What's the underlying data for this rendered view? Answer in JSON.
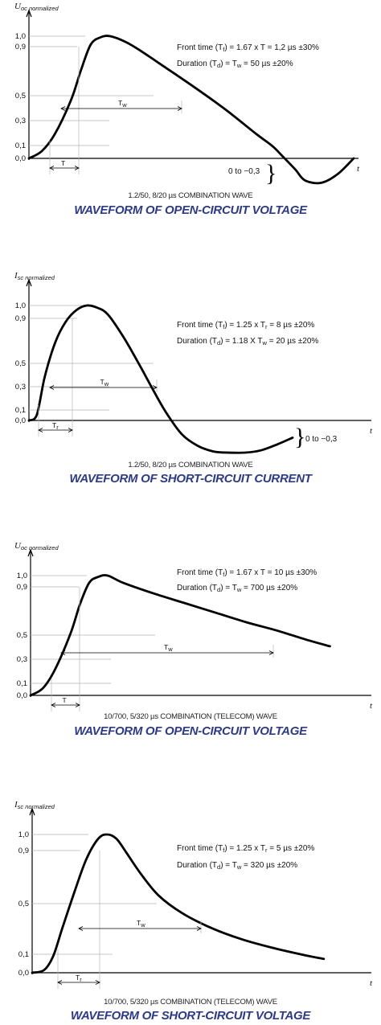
{
  "chart_data": [
    {
      "type": "line",
      "ylabel": "U",
      "ylabel_sub": "oc normalized",
      "xlabel": "t",
      "yticks": [
        "1,0",
        "0,9",
        "0,5",
        "0,3",
        "0,1",
        "0,0"
      ],
      "notes": [
        {
          "parts": [
            "Front time (T",
            "f",
            ") =  1.67 x T  = 1,2 µs ±30%"
          ]
        },
        {
          "parts": [
            "Duration (T",
            "d",
            ") =     T",
            "w",
            "     = 50 µs ±20%"
          ]
        }
      ],
      "dims": {
        "short": "T",
        "long": "T",
        "long_sub": "w"
      },
      "undershoot_label": "0 to −0,3",
      "caption": "1.2/50, 8/20 µs COMBINATION WAVE",
      "title": "WAVEFORM OF OPEN-CIRCUIT VOLTAGE",
      "series": [
        {
          "x": [
            0,
            0.04,
            0.08,
            0.13,
            0.16,
            0.19,
            0.22,
            0.25,
            0.3,
            0.35,
            0.4,
            0.5,
            0.6,
            0.7,
            0.75,
            0.78,
            0.82,
            0.85,
            0.9,
            0.95,
            1.0
          ],
          "y": [
            0.0,
            0.06,
            0.2,
            0.48,
            0.72,
            0.93,
            0.99,
            1.0,
            0.95,
            0.87,
            0.78,
            0.6,
            0.41,
            0.2,
            0.1,
            0.02,
            -0.09,
            -0.18,
            -0.2,
            -0.13,
            -0.0
          ]
        }
      ]
    },
    {
      "type": "line",
      "ylabel": "I",
      "ylabel_sub": "sc normalized",
      "xlabel": "t",
      "yticks": [
        "1,0",
        "0,9",
        "0,5",
        "0,3",
        "0,1",
        "0,0"
      ],
      "notes": [
        {
          "parts": [
            "Front time (T",
            "f",
            ") =  1.25 x T",
            "r",
            " = 8 µs ±20%"
          ]
        },
        {
          "parts": [
            "Duration (T",
            "d",
            ") = 1.18 X T",
            "w",
            " = 20 µs ±20%"
          ]
        }
      ],
      "dims": {
        "short": "T",
        "short_sub": "r",
        "long": "T",
        "long_sub": "w"
      },
      "undershoot_label": "0 to −0,3",
      "caption": "1.2/50, 8/20 µs COMBINATION WAVE",
      "title": "WAVEFORM OF SHORT-CIRCUIT CURRENT",
      "series": [
        {
          "x": [
            0,
            0.03,
            0.06,
            0.1,
            0.14,
            0.18,
            0.22,
            0.26,
            0.3,
            0.36,
            0.42,
            0.47,
            0.52,
            0.58,
            0.64,
            0.7,
            0.76,
            0.82,
            0.88,
            0.94,
            1.0
          ],
          "y": [
            0.0,
            0.05,
            0.38,
            0.68,
            0.86,
            0.96,
            1.0,
            0.98,
            0.92,
            0.72,
            0.48,
            0.27,
            0.07,
            -0.12,
            -0.22,
            -0.27,
            -0.28,
            -0.28,
            -0.26,
            -0.21,
            -0.15
          ]
        }
      ]
    },
    {
      "type": "line",
      "ylabel": "U",
      "ylabel_sub": "oc normalized",
      "xlabel": "t",
      "yticks": [
        "1,0",
        "0,9",
        "0,5",
        "0,3",
        "0,1",
        "0,0"
      ],
      "notes": [
        {
          "parts": [
            "Front time (T",
            "f",
            ") =  1.67 x T   = 10 µs ±30%"
          ]
        },
        {
          "parts": [
            "Duration (T",
            "d",
            ") =     T",
            "w",
            "     = 700 µs ±20%"
          ]
        }
      ],
      "dims": {
        "short": "T",
        "long": "T",
        "long_sub": "w"
      },
      "caption": "10/700, 5/320 µs COMBINATION (TELECOM) WAVE",
      "title": "WAVEFORM OF OPEN-CIRCUIT VOLTAGE",
      "series": [
        {
          "x": [
            0,
            0.04,
            0.08,
            0.13,
            0.16,
            0.19,
            0.22,
            0.25,
            0.3,
            0.4,
            0.5,
            0.6,
            0.7,
            0.8,
            0.9,
            0.97
          ],
          "y": [
            0.0,
            0.06,
            0.22,
            0.52,
            0.76,
            0.94,
            0.99,
            1.0,
            0.94,
            0.85,
            0.77,
            0.69,
            0.61,
            0.54,
            0.46,
            0.41
          ]
        }
      ]
    },
    {
      "type": "line",
      "ylabel": "I",
      "ylabel_sub": "sc normalized",
      "xlabel": "t",
      "yticks": [
        "1,0",
        "0,9",
        "0,5",
        "0,1",
        "0,0"
      ],
      "notes": [
        {
          "parts": [
            "Front time (T",
            "f",
            ") = 1.25 x T",
            "r",
            " = 5 µs ±20%"
          ]
        },
        {
          "parts": [
            "Duration (T",
            "d",
            ") =      T",
            "w",
            "     = 320 µs ±20%"
          ]
        }
      ],
      "dims": {
        "short": "T",
        "short_sub": "r",
        "long": "T",
        "long_sub": "w"
      },
      "caption": "10/700, 5/320 µs COMBINATION (TELECOM) WAVE",
      "title": "WAVEFORM OF SHORT-CIRCUIT VOLTAGE",
      "series": [
        {
          "x": [
            0,
            0.04,
            0.07,
            0.1,
            0.14,
            0.18,
            0.22,
            0.25,
            0.28,
            0.31,
            0.36,
            0.42,
            0.5,
            0.6,
            0.7,
            0.8,
            0.9,
            0.97
          ],
          "y": [
            0.0,
            0.02,
            0.12,
            0.32,
            0.58,
            0.82,
            0.97,
            1.0,
            0.97,
            0.88,
            0.72,
            0.56,
            0.43,
            0.32,
            0.24,
            0.18,
            0.13,
            0.1
          ]
        }
      ]
    }
  ]
}
